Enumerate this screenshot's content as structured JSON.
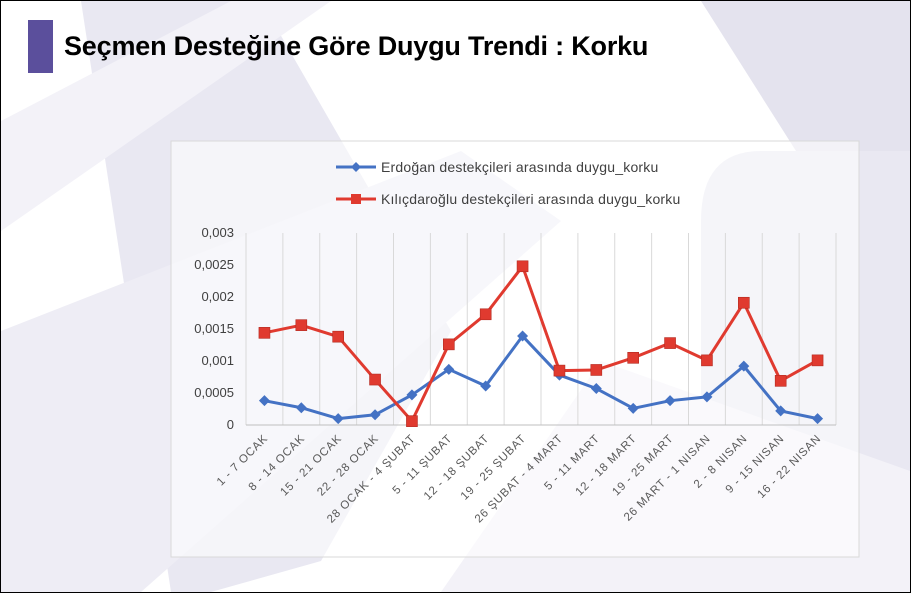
{
  "slide": {
    "title": "Seçmen Desteğine Göre Duygu Trendi : Korku",
    "accent_color": "#5b4f9c"
  },
  "chart_data": {
    "type": "line",
    "title": "",
    "xlabel": "",
    "ylabel": "",
    "ylim": [
      0,
      0.003
    ],
    "yticks": [
      "0",
      "0,0005",
      "0,001",
      "0,0015",
      "0,002",
      "0,0025",
      "0,003"
    ],
    "ytick_values": [
      0,
      0.0005,
      0.001,
      0.0015,
      0.002,
      0.0025,
      0.003
    ],
    "legend_position": "top",
    "categories": [
      "1 - 7 OCAK",
      "8 - 14 OCAK",
      "15 - 21 OCAK",
      "22 - 28 OCAK",
      "28 OCAK - 4 ŞUBAT",
      "5 - 11 ŞUBAT",
      "12 - 18 ŞUBAT",
      "19 - 25 ŞUBAT",
      "26 ŞUBAT - 4 MART",
      "5 - 11 MART",
      "12 - 18 MART",
      "19 - 25 MART",
      "26 MART - 1 NISAN",
      "2 - 8 NISAN",
      "9 - 15 NISAN",
      "16 - 22 NISAN"
    ],
    "series": [
      {
        "name": "Erdoğan destekçileri arasında duygu_korku",
        "color": "#4472c4",
        "marker": "diamond",
        "values": [
          0.00038,
          0.00027,
          0.0001,
          0.00016,
          0.00047,
          0.00087,
          0.00061,
          0.00139,
          0.00078,
          0.00057,
          0.00026,
          0.00038,
          0.00044,
          0.00092,
          0.00022,
          0.0001
        ]
      },
      {
        "name": "Kılıçdaroğlu destekçileri arasında duygu_korku",
        "color": "#e03a2f",
        "marker": "square",
        "values": [
          0.00144,
          0.00156,
          0.00138,
          0.00071,
          6e-05,
          0.00126,
          0.00173,
          0.00248,
          0.00085,
          0.00086,
          0.00105,
          0.00128,
          0.00101,
          0.00191,
          0.00069,
          0.00101
        ]
      }
    ]
  }
}
